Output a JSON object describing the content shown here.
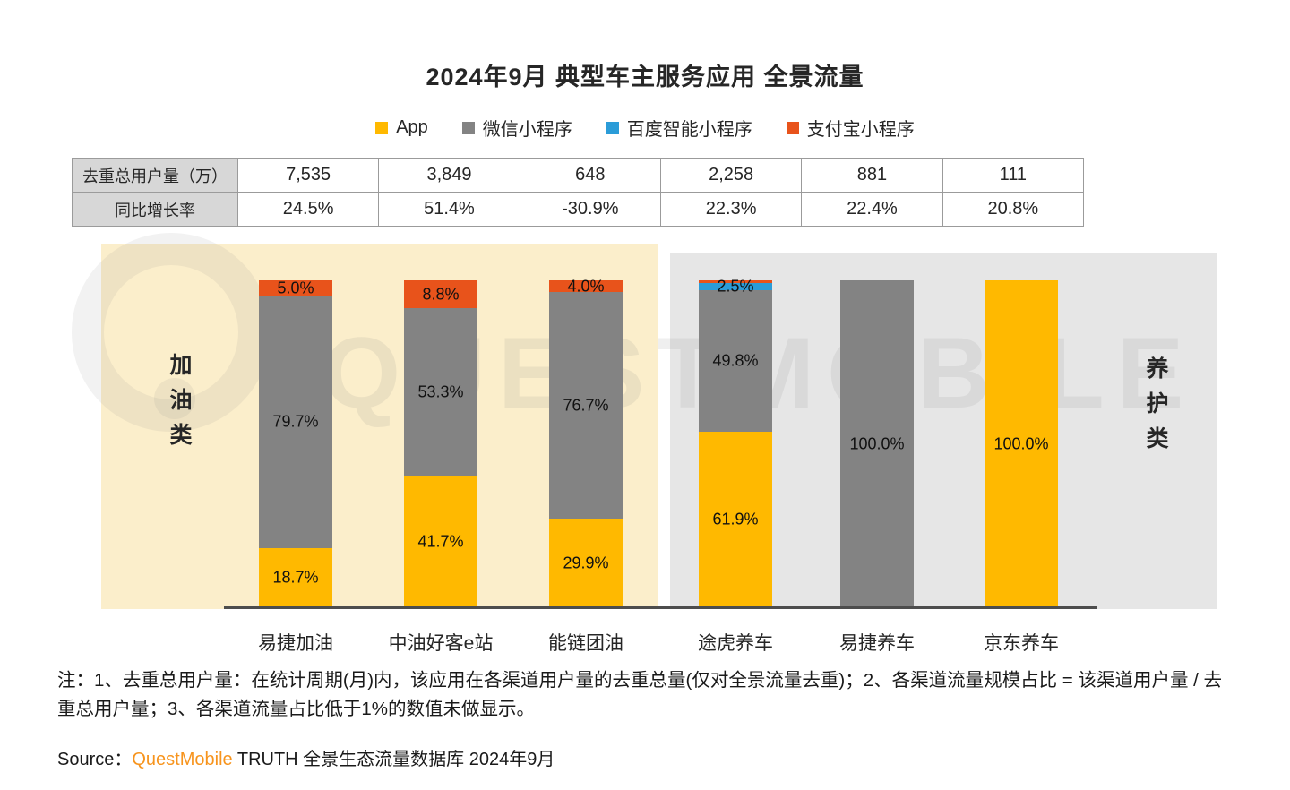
{
  "title": "2024年9月 典型车主服务应用 全景流量",
  "watermark": {
    "text": "QUESTMOBILE"
  },
  "legend": [
    {
      "label": "App",
      "color": "#FFB900"
    },
    {
      "label": "微信小程序",
      "color": "#838383"
    },
    {
      "label": "百度智能小程序",
      "color": "#2B9CD8"
    },
    {
      "label": "支付宝小程序",
      "color": "#E8531B"
    }
  ],
  "stats_table": {
    "row1_label": "去重总用户量（万）",
    "row2_label": "同比增长率",
    "row1_values": [
      "7,535",
      "3,849",
      "648",
      "2,258",
      "881",
      "111"
    ],
    "row2_values": [
      "24.5%",
      "51.4%",
      "-30.9%",
      "22.3%",
      "22.4%",
      "20.8%"
    ]
  },
  "zones": {
    "left_label": "加油类",
    "right_label": "养护类"
  },
  "chart_data": {
    "type": "bar",
    "stacked": true,
    "unit": "%",
    "label_min_display": 1.0,
    "categories": [
      "易捷加油",
      "中油好客e站",
      "能链团油",
      "途虎养车",
      "易捷养车",
      "京东养车"
    ],
    "series": [
      {
        "name": "App",
        "color": "#FFB900",
        "values": [
          18.7,
          41.7,
          29.9,
          61.9,
          0,
          100.0
        ]
      },
      {
        "name": "微信小程序",
        "color": "#838383",
        "values": [
          79.7,
          53.3,
          76.7,
          49.8,
          100.0,
          0
        ]
      },
      {
        "name": "百度智能小程序",
        "color": "#2B9CD8",
        "values": [
          0,
          0,
          0,
          2.5,
          0,
          0
        ]
      },
      {
        "name": "支付宝小程序",
        "color": "#E8531B",
        "values": [
          5.0,
          8.8,
          4.0,
          0.9,
          0,
          0
        ]
      }
    ],
    "display_note": "各渠道流量占比低于1%的数值未做显示"
  },
  "notes": "注：1、去重总用户量：在统计周期(月)内，该应用在各渠道用户量的去重总量(仅对全景流量去重)；2、各渠道流量规模占比 = 该渠道用户量 / 去重总用户量；3、各渠道流量占比低于1%的数值未做显示。",
  "source": {
    "prefix": "Source：",
    "brand": "QuestMobile",
    "suffix": " TRUTH 全景生态流量数据库 2024年9月",
    "brand_color": "#F7941D"
  }
}
